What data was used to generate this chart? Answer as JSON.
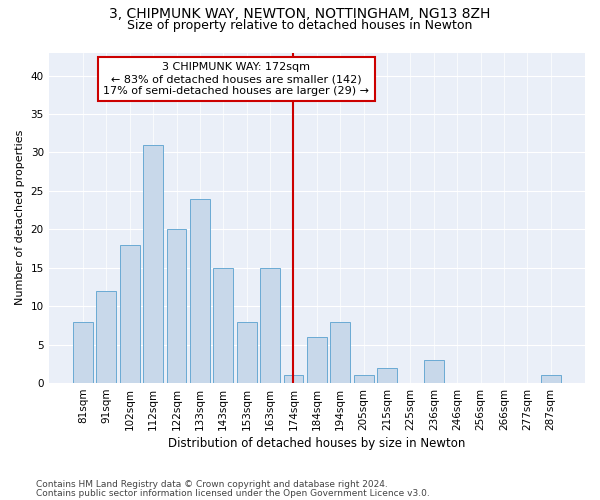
{
  "title1": "3, CHIPMUNK WAY, NEWTON, NOTTINGHAM, NG13 8ZH",
  "title2": "Size of property relative to detached houses in Newton",
  "xlabel": "Distribution of detached houses by size in Newton",
  "ylabel": "Number of detached properties",
  "categories": [
    "81sqm",
    "91sqm",
    "102sqm",
    "112sqm",
    "122sqm",
    "133sqm",
    "143sqm",
    "153sqm",
    "163sqm",
    "174sqm",
    "184sqm",
    "194sqm",
    "205sqm",
    "215sqm",
    "225sqm",
    "236sqm",
    "246sqm",
    "256sqm",
    "266sqm",
    "277sqm",
    "287sqm"
  ],
  "values": [
    8,
    12,
    18,
    31,
    20,
    24,
    15,
    8,
    15,
    1,
    6,
    8,
    1,
    2,
    0,
    3,
    0,
    0,
    0,
    0,
    1
  ],
  "bar_color": "#c8d8ea",
  "bar_edge_color": "#6aaad4",
  "ref_line_x": 9,
  "ref_line_color": "#cc0000",
  "annotation_line1": "3 CHIPMUNK WAY: 172sqm",
  "annotation_line2": "← 83% of detached houses are smaller (142)",
  "annotation_line3": "17% of semi-detached houses are larger (29) →",
  "annotation_box_color": "#cc0000",
  "annotation_bg": "#ffffff",
  "ylim": [
    0,
    43
  ],
  "yticks": [
    0,
    5,
    10,
    15,
    20,
    25,
    30,
    35,
    40
  ],
  "bg_color": "#eaeff8",
  "footer1": "Contains HM Land Registry data © Crown copyright and database right 2024.",
  "footer2": "Contains public sector information licensed under the Open Government Licence v3.0.",
  "title1_fontsize": 10,
  "title2_fontsize": 9,
  "xlabel_fontsize": 8.5,
  "ylabel_fontsize": 8,
  "tick_fontsize": 7.5,
  "annotation_fontsize": 8,
  "footer_fontsize": 6.5
}
